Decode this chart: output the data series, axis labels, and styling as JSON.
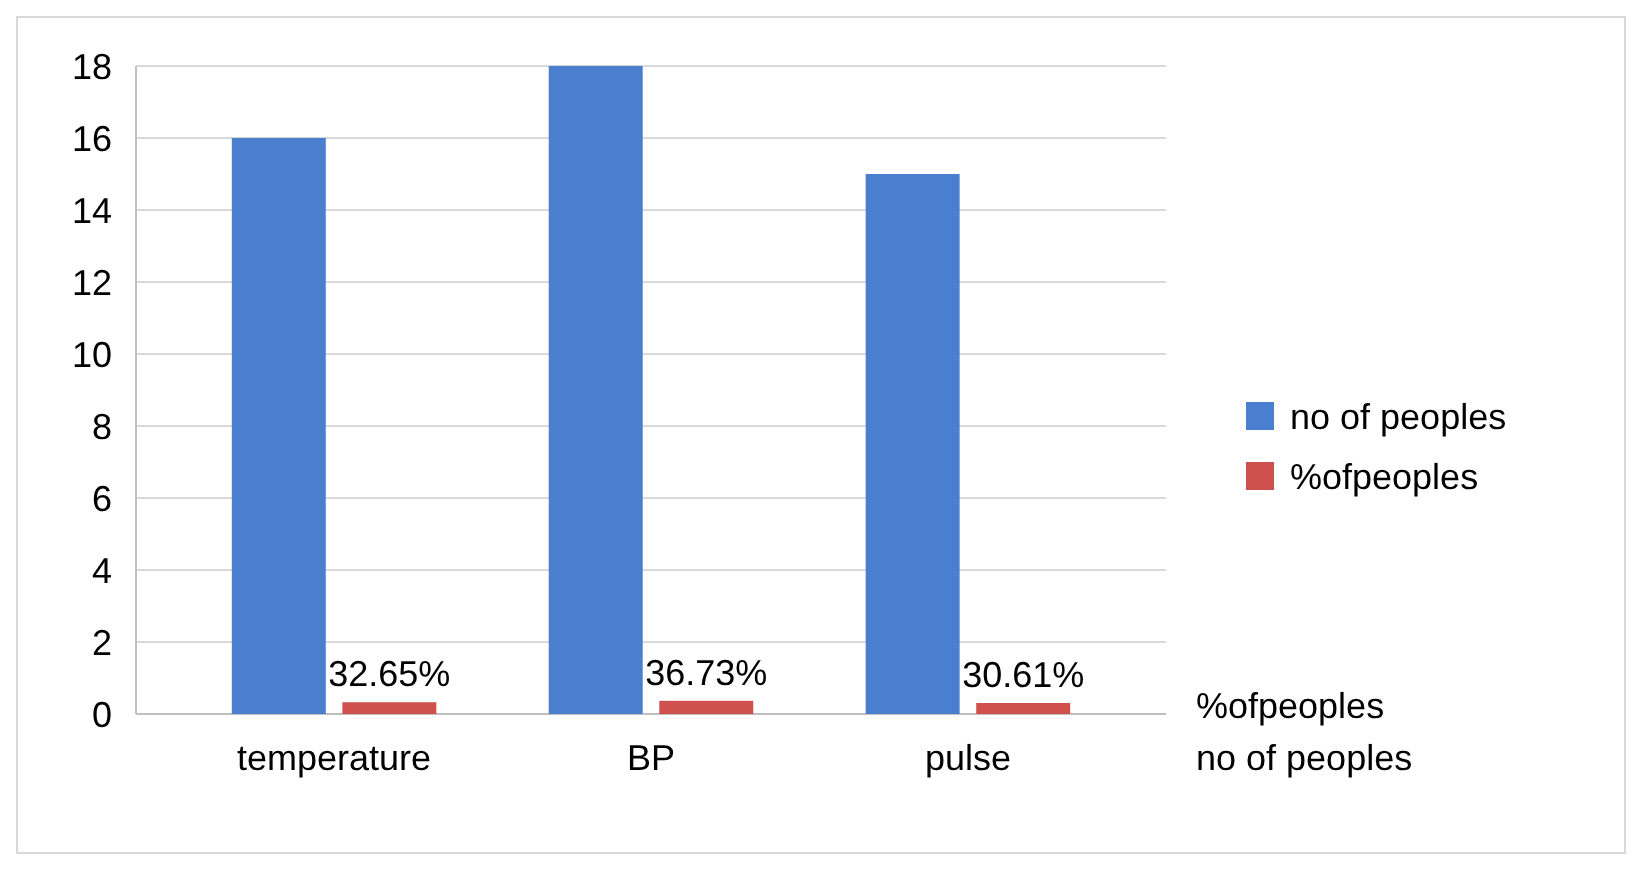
{
  "chart_data": {
    "type": "bar",
    "categories": [
      "temperature",
      "BP",
      "pulse"
    ],
    "series": [
      {
        "name": "no of peoples",
        "color": "#4a7fd0",
        "values": [
          16,
          18,
          15
        ]
      },
      {
        "name": "%ofpeoples",
        "color": "#d0504d",
        "values": [
          0.3265,
          0.3673,
          0.3061
        ],
        "value_labels": [
          "32.65%",
          "36.73%",
          "30.61%"
        ]
      }
    ],
    "ylim": [
      0,
      18
    ],
    "yticks": [
      0,
      2,
      4,
      6,
      8,
      10,
      12,
      14,
      16,
      18
    ],
    "grid": "y",
    "legend": "right"
  }
}
